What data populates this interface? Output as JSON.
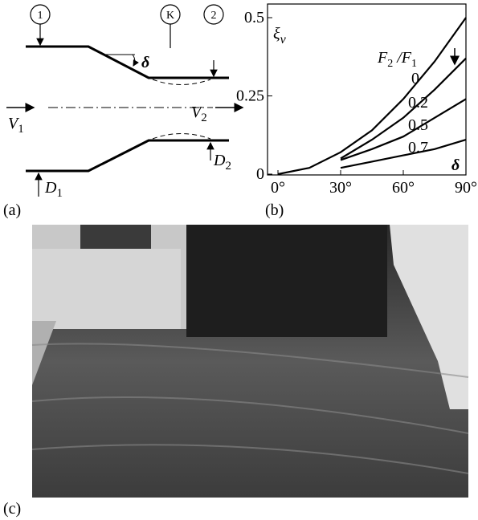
{
  "panel_a": {
    "label": "(a)",
    "station_1": "1",
    "station_k": "K",
    "station_2": "2",
    "angle": "δ",
    "v1": {
      "symbol": "V",
      "subscript": "1"
    },
    "v2": {
      "symbol": "V",
      "subscript": "2"
    },
    "d1": {
      "symbol": "D",
      "subscript": "1"
    },
    "d2": {
      "symbol": "D",
      "subscript": "2"
    }
  },
  "chart_data": {
    "type": "line",
    "label": "(b)",
    "y_label": {
      "symbol": "ξ",
      "subscript": "v"
    },
    "legend_title": {
      "f2": "F",
      "f2_sub": "2",
      "slash": " /",
      "f1": "F",
      "f1_sub": "1"
    },
    "x_annotation": "δ",
    "x": [
      0,
      15,
      30,
      45,
      60,
      75,
      90
    ],
    "series": [
      {
        "name": "0",
        "color": "#000000",
        "values": [
          0,
          0.02,
          0.07,
          0.14,
          0.24,
          0.36,
          0.5
        ]
      },
      {
        "name": "0.2",
        "color": "#000000",
        "values": [
          null,
          null,
          0.05,
          0.11,
          0.18,
          0.27,
          0.37
        ]
      },
      {
        "name": "0.5",
        "color": "#000000",
        "values": [
          null,
          null,
          0.045,
          0.08,
          0.12,
          0.18,
          0.24
        ]
      },
      {
        "name": "0.7",
        "color": "#000000",
        "values": [
          null,
          null,
          0.02,
          0.04,
          0.06,
          0.08,
          0.11
        ]
      }
    ],
    "xlim": [
      0,
      90
    ],
    "ylim": [
      0,
      0.5
    ],
    "xticks": [
      {
        "value": 0,
        "label": "0°"
      },
      {
        "value": 30,
        "label": "30°"
      },
      {
        "value": 60,
        "label": "60°"
      },
      {
        "value": 90,
        "label": "90°"
      }
    ],
    "yticks": [
      0,
      0.25,
      0.5
    ]
  },
  "panel_c": {
    "label": "(c)"
  }
}
